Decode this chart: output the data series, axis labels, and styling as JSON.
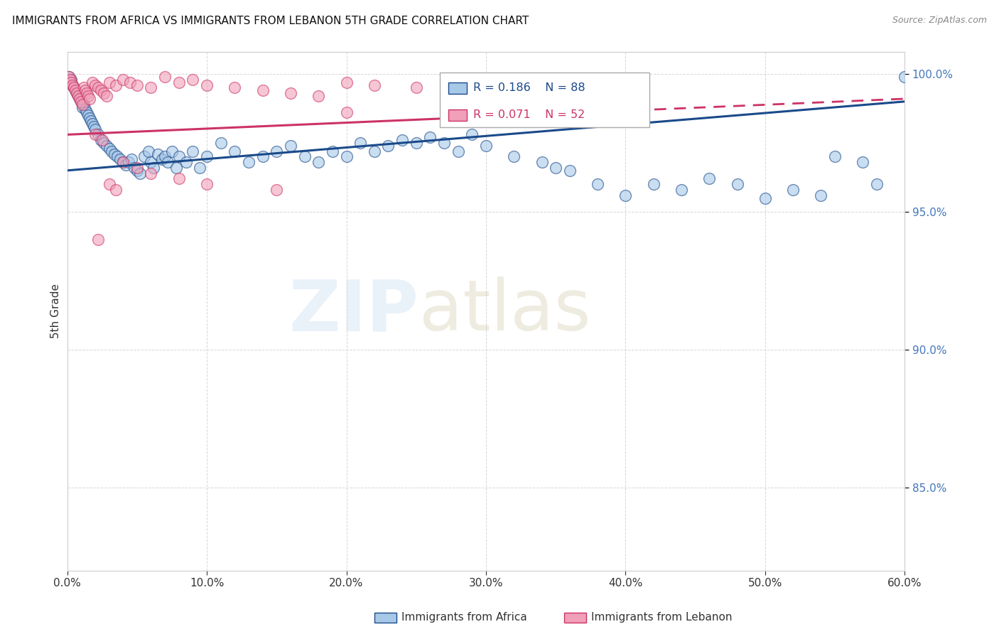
{
  "title": "IMMIGRANTS FROM AFRICA VS IMMIGRANTS FROM LEBANON 5TH GRADE CORRELATION CHART",
  "source": "Source: ZipAtlas.com",
  "ylabel": "5th Grade",
  "legend_labels": [
    "Immigrants from Africa",
    "Immigrants from Lebanon"
  ],
  "R_africa": 0.186,
  "N_africa": 88,
  "R_lebanon": 0.071,
  "N_lebanon": 52,
  "color_africa": "#a8c8e8",
  "color_lebanon": "#f0a0b8",
  "trendline_africa": "#1a4a8a",
  "trendline_lebanon": "#cc3366",
  "xmin": 0.0,
  "xmax": 0.6,
  "ymin": 0.82,
  "ymax": 1.008,
  "yticks": [
    0.85,
    0.9,
    0.95,
    1.0
  ],
  "xticks": [
    0.0,
    0.1,
    0.2,
    0.3,
    0.4,
    0.5,
    0.6
  ],
  "africa_x": [
    0.001,
    0.002,
    0.003,
    0.004,
    0.005,
    0.006,
    0.007,
    0.008,
    0.009,
    0.01,
    0.011,
    0.012,
    0.013,
    0.014,
    0.015,
    0.016,
    0.017,
    0.018,
    0.019,
    0.02,
    0.022,
    0.024,
    0.026,
    0.028,
    0.03,
    0.032,
    0.034,
    0.036,
    0.038,
    0.04,
    0.042,
    0.044,
    0.046,
    0.048,
    0.05,
    0.052,
    0.055,
    0.058,
    0.06,
    0.062,
    0.065,
    0.068,
    0.07,
    0.072,
    0.075,
    0.078,
    0.08,
    0.085,
    0.09,
    0.095,
    0.1,
    0.11,
    0.12,
    0.13,
    0.14,
    0.15,
    0.16,
    0.17,
    0.18,
    0.19,
    0.2,
    0.21,
    0.22,
    0.23,
    0.24,
    0.25,
    0.26,
    0.27,
    0.28,
    0.29,
    0.3,
    0.32,
    0.34,
    0.35,
    0.36,
    0.38,
    0.4,
    0.42,
    0.44,
    0.46,
    0.48,
    0.5,
    0.52,
    0.54,
    0.55,
    0.57,
    0.58,
    0.6
  ],
  "africa_y": [
    0.999,
    0.997,
    0.998,
    0.996,
    0.995,
    0.994,
    0.993,
    0.992,
    0.991,
    0.99,
    0.988,
    0.989,
    0.987,
    0.986,
    0.985,
    0.984,
    0.983,
    0.982,
    0.981,
    0.98,
    0.978,
    0.976,
    0.975,
    0.974,
    0.973,
    0.972,
    0.971,
    0.97,
    0.969,
    0.968,
    0.967,
    0.968,
    0.969,
    0.966,
    0.965,
    0.964,
    0.97,
    0.972,
    0.968,
    0.966,
    0.971,
    0.969,
    0.97,
    0.968,
    0.972,
    0.966,
    0.97,
    0.968,
    0.972,
    0.966,
    0.97,
    0.975,
    0.972,
    0.968,
    0.97,
    0.972,
    0.974,
    0.97,
    0.968,
    0.972,
    0.97,
    0.975,
    0.972,
    0.974,
    0.976,
    0.975,
    0.977,
    0.975,
    0.972,
    0.978,
    0.974,
    0.97,
    0.968,
    0.966,
    0.965,
    0.96,
    0.956,
    0.96,
    0.958,
    0.962,
    0.96,
    0.955,
    0.958,
    0.956,
    0.97,
    0.968,
    0.96,
    0.999
  ],
  "lebanon_x": [
    0.001,
    0.002,
    0.003,
    0.004,
    0.005,
    0.006,
    0.007,
    0.008,
    0.009,
    0.01,
    0.011,
    0.012,
    0.013,
    0.014,
    0.015,
    0.016,
    0.018,
    0.02,
    0.022,
    0.024,
    0.026,
    0.028,
    0.03,
    0.035,
    0.04,
    0.045,
    0.05,
    0.06,
    0.07,
    0.08,
    0.09,
    0.1,
    0.12,
    0.14,
    0.16,
    0.18,
    0.2,
    0.22,
    0.25,
    0.28,
    0.02,
    0.025,
    0.03,
    0.035,
    0.04,
    0.05,
    0.06,
    0.08,
    0.1,
    0.15,
    0.022,
    0.2
  ],
  "lebanon_y": [
    0.999,
    0.998,
    0.997,
    0.996,
    0.995,
    0.994,
    0.993,
    0.992,
    0.991,
    0.99,
    0.989,
    0.995,
    0.994,
    0.993,
    0.992,
    0.991,
    0.997,
    0.996,
    0.995,
    0.994,
    0.993,
    0.992,
    0.997,
    0.996,
    0.998,
    0.997,
    0.996,
    0.995,
    0.999,
    0.997,
    0.998,
    0.996,
    0.995,
    0.994,
    0.993,
    0.992,
    0.997,
    0.996,
    0.995,
    0.994,
    0.978,
    0.976,
    0.96,
    0.958,
    0.968,
    0.966,
    0.964,
    0.962,
    0.96,
    0.958,
    0.94,
    0.986
  ],
  "trendline_africa_x0": 0.0,
  "trendline_africa_x1": 0.6,
  "trendline_africa_y0": 0.965,
  "trendline_africa_y1": 0.99,
  "trendline_lebanon_x0": 0.0,
  "trendline_lebanon_x1": 0.6,
  "trendline_lebanon_y0": 0.978,
  "trendline_lebanon_y1": 0.991
}
